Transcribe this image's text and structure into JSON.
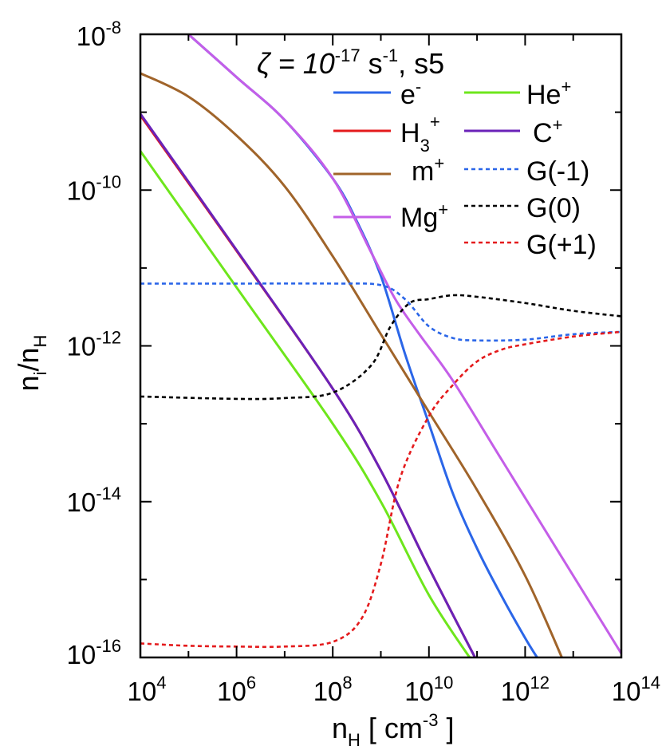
{
  "chart_data": {
    "type": "line",
    "title": "ζ = 10⁻¹⁷ s⁻¹, s5",
    "title_parts": {
      "zeta": "ζ = 10",
      "exp": "-17",
      "unit": " s",
      "unit_exp": "-1",
      "suffix": ", s5"
    },
    "xlabel": "n_H [ cm^-3 ]",
    "xlabel_parts": {
      "n": "n",
      "sub": "H",
      "open": " [ cm",
      "exp": "-3",
      "close": " ]"
    },
    "ylabel": "n_i/n_H",
    "ylabel_parts": {
      "n1": "n",
      "sub1": "i",
      "slash": "/n",
      "sub2": "H"
    },
    "x_scale": "log",
    "y_scale": "log",
    "xlim": [
      10000,
      100000000000000
    ],
    "ylim": [
      1e-16,
      1e-08
    ],
    "x_ticks": [
      {
        "base": "10",
        "exp": "4",
        "value": 4
      },
      {
        "base": "10",
        "exp": "6",
        "value": 6
      },
      {
        "base": "10",
        "exp": "8",
        "value": 8
      },
      {
        "base": "10",
        "exp": "10",
        "value": 10
      },
      {
        "base": "10",
        "exp": "12",
        "value": 12
      },
      {
        "base": "10",
        "exp": "14",
        "value": 14
      }
    ],
    "y_ticks": [
      {
        "base": "10",
        "exp": "-8",
        "value": -8
      },
      {
        "base": "10",
        "exp": "-10",
        "value": -10
      },
      {
        "base": "10",
        "exp": "-12",
        "value": -12
      },
      {
        "base": "10",
        "exp": "-14",
        "value": -14
      },
      {
        "base": "10",
        "exp": "-16",
        "value": -16
      }
    ],
    "legend_position": "top-right",
    "series": [
      {
        "name": "e-",
        "label": "e",
        "sup": "-",
        "sub": "",
        "color": "#2b66e8",
        "dash": false,
        "log_x": [
          5,
          6,
          7,
          8,
          8.5,
          9,
          9.5,
          10,
          10.5,
          11,
          11.5,
          12,
          12.3
        ],
        "log_y": [
          -8,
          -8.55,
          -9.1,
          -9.85,
          -10.4,
          -11.1,
          -12.1,
          -13.0,
          -13.9,
          -14.6,
          -15.2,
          -15.75,
          -16.05
        ]
      },
      {
        "name": "H3+",
        "label": "H",
        "sup": "+",
        "sub": "3",
        "color": "#e41a1c",
        "dash": false,
        "log_x": [
          4,
          6,
          8,
          9,
          10,
          11
        ],
        "log_y": [
          -9.04,
          -10.78,
          -12.55,
          -13.6,
          -14.85,
          -16.05
        ]
      },
      {
        "name": "m+",
        "label": "m",
        "sup": "+",
        "sub": "",
        "color": "#a0642a",
        "dash": false,
        "log_x": [
          4,
          5,
          6,
          7,
          8,
          9,
          10,
          11,
          12,
          12.8
        ],
        "log_y": [
          -8.5,
          -8.8,
          -9.3,
          -9.95,
          -10.85,
          -11.85,
          -12.85,
          -13.85,
          -14.95,
          -16.05
        ]
      },
      {
        "name": "Mg+",
        "label": "Mg",
        "sup": "+",
        "sub": "",
        "color": "#c45ee8",
        "dash": false,
        "log_x": [
          5,
          6,
          7,
          8,
          8.8,
          9.3,
          9.8,
          10.5,
          11.5,
          12.5,
          13.5,
          14
        ],
        "log_y": [
          -8,
          -8.55,
          -9.1,
          -9.85,
          -10.8,
          -11.4,
          -11.85,
          -12.45,
          -13.45,
          -14.45,
          -15.45,
          -15.95
        ]
      },
      {
        "name": "He+",
        "label": "He",
        "sup": "+",
        "sub": "",
        "color": "#6ee61c",
        "dash": false,
        "log_x": [
          4,
          6,
          8,
          9,
          10,
          10.9
        ],
        "log_y": [
          -9.5,
          -11.25,
          -13.0,
          -14.0,
          -15.2,
          -16.05
        ]
      },
      {
        "name": "C+",
        "label": "C",
        "sup": "+",
        "sub": "",
        "color": "#6a22b8",
        "dash": false,
        "log_x": [
          4,
          6,
          8,
          9,
          10,
          11
        ],
        "log_y": [
          -9.02,
          -10.77,
          -12.55,
          -13.6,
          -14.85,
          -16.05
        ]
      },
      {
        "name": "G(-1)",
        "label": "G(-1)",
        "sup": "",
        "sub": "",
        "color": "#2b66e8",
        "dash": true,
        "log_x": [
          4,
          6,
          8,
          9,
          9.5,
          10,
          10.5,
          11,
          12,
          13,
          14
        ],
        "log_y": [
          -11.2,
          -11.2,
          -11.2,
          -11.22,
          -11.4,
          -11.75,
          -11.9,
          -11.93,
          -11.92,
          -11.85,
          -11.82
        ]
      },
      {
        "name": "G(0)",
        "label": "G(0)",
        "sup": "",
        "sub": "",
        "color": "#000000",
        "dash": true,
        "log_x": [
          4,
          6,
          7,
          8,
          8.8,
          9.2,
          9.6,
          10,
          10.5,
          11,
          12,
          13,
          14
        ],
        "log_y": [
          -12.65,
          -12.68,
          -12.67,
          -12.6,
          -12.25,
          -11.75,
          -11.45,
          -11.4,
          -11.35,
          -11.37,
          -11.45,
          -11.55,
          -11.62
        ]
      },
      {
        "name": "G(+1)",
        "label": "G(+1)",
        "sup": "",
        "sub": "",
        "color": "#e41a1c",
        "dash": true,
        "log_x": [
          4,
          5,
          6,
          7,
          8,
          8.6,
          9,
          9.4,
          10,
          10.5,
          11,
          11.5,
          12,
          13,
          14
        ],
        "log_y": [
          -15.82,
          -15.85,
          -15.86,
          -15.86,
          -15.8,
          -15.5,
          -14.8,
          -13.7,
          -12.9,
          -12.5,
          -12.2,
          -12.05,
          -11.98,
          -11.88,
          -11.82
        ]
      }
    ]
  }
}
